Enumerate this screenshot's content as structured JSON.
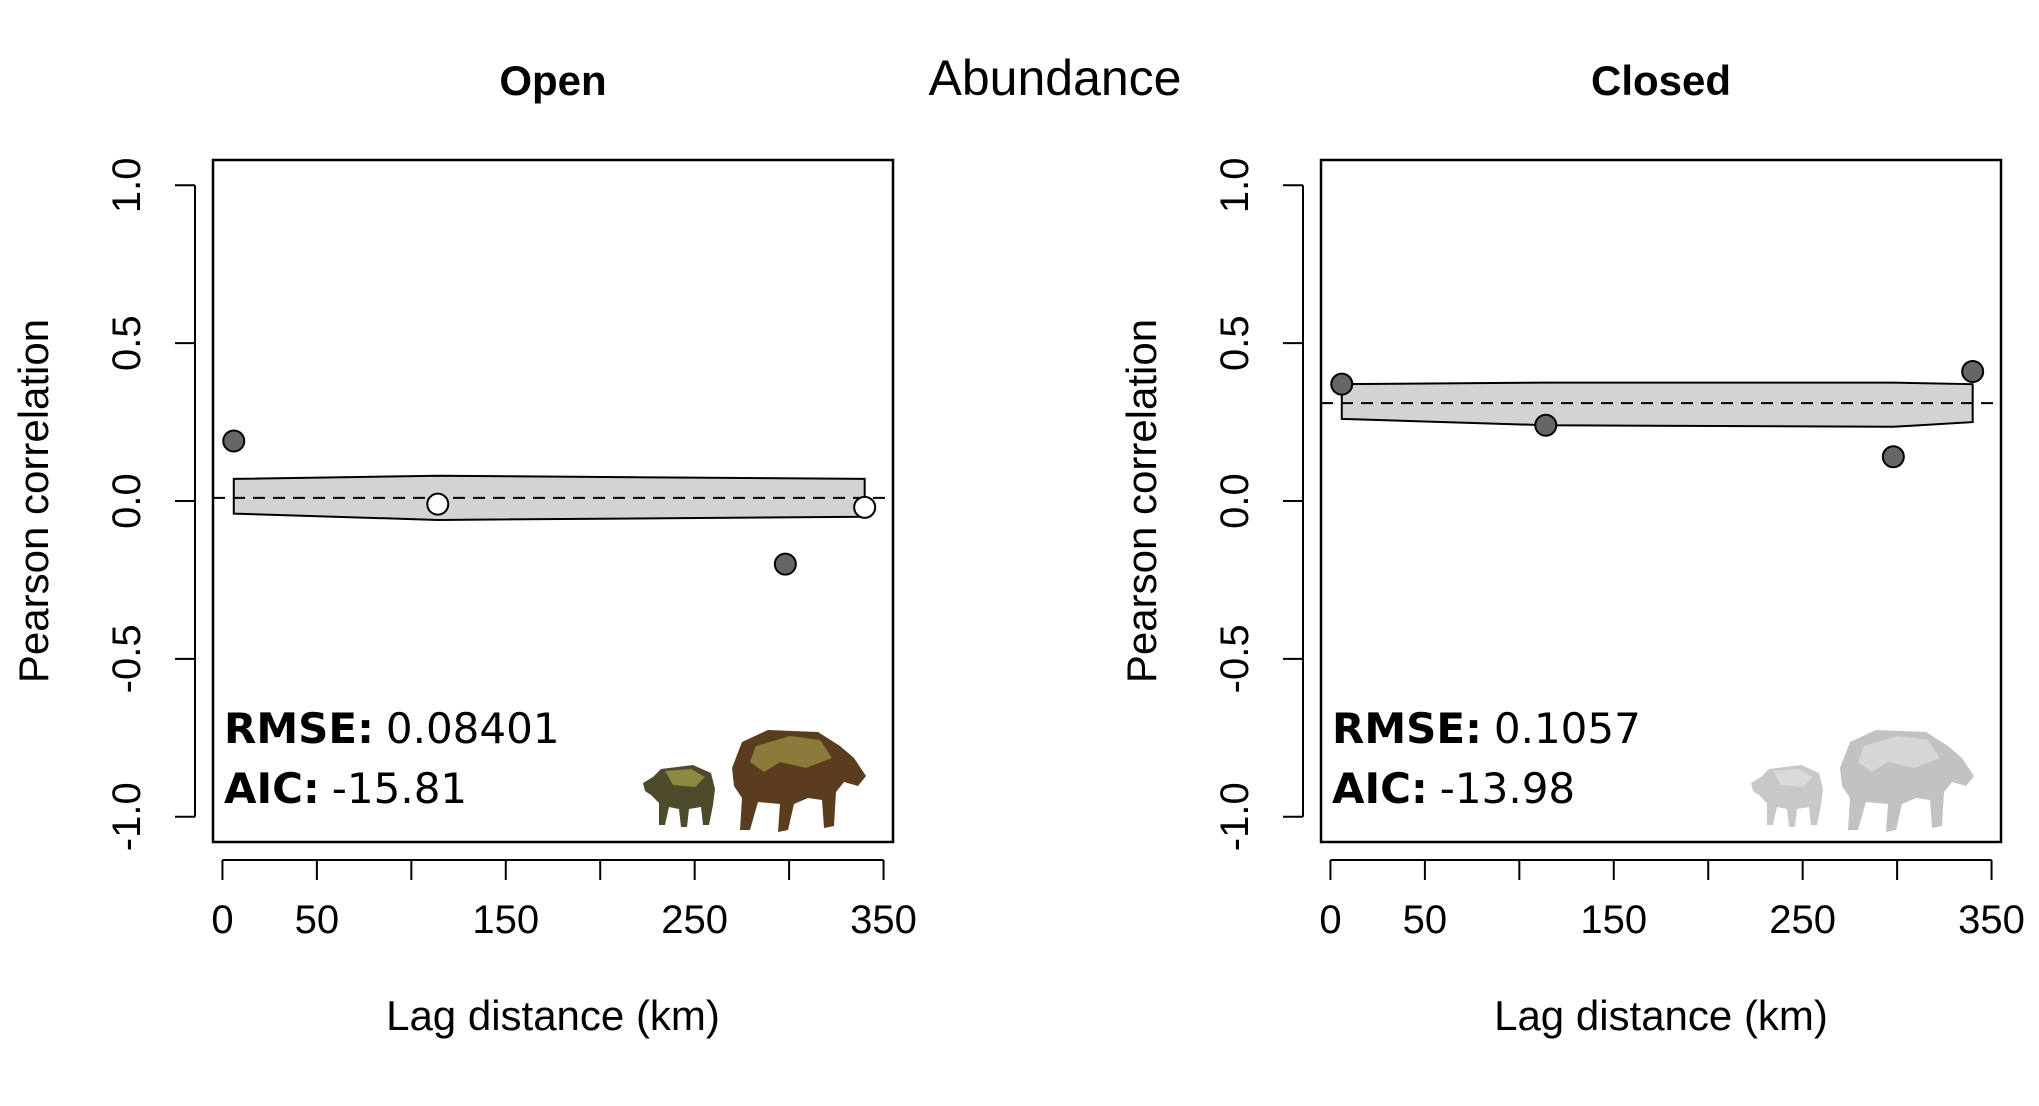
{
  "suptitle": "Abundance",
  "chart_data": [
    {
      "type": "scatter",
      "title": "Open",
      "xlabel": "Lag distance (km)",
      "ylabel": "Pearson correlation",
      "xlim": [
        -5,
        355
      ],
      "ylim": [
        -1.08,
        1.08
      ],
      "x_ticks": [
        0,
        50,
        100,
        150,
        200,
        250,
        300,
        350
      ],
      "x_tick_labels": [
        "0",
        "50",
        "",
        "150",
        "",
        "250",
        "",
        "350"
      ],
      "y_ticks": [
        -1.0,
        -0.5,
        0.0,
        0.5,
        1.0
      ],
      "y_tick_labels": [
        "-1.0",
        "-0.5",
        "0.0",
        "0.5",
        "1.0"
      ],
      "points": [
        {
          "x": 6,
          "y": 0.19,
          "significant": true
        },
        {
          "x": 114,
          "y": -0.01,
          "significant": false
        },
        {
          "x": 298,
          "y": -0.2,
          "significant": true
        },
        {
          "x": 340,
          "y": -0.02,
          "significant": false
        }
      ],
      "null_mean": 0.01,
      "envelope": {
        "x": [
          6,
          114,
          340
        ],
        "upper": [
          0.07,
          0.08,
          0.07
        ],
        "lower": [
          -0.04,
          -0.06,
          -0.05
        ]
      },
      "stats": {
        "rmse_label": "RMSE:",
        "rmse": "0.08401",
        "aic_label": "AIC:",
        "aic": "-15.81"
      },
      "silhouette_style": "color"
    },
    {
      "type": "scatter",
      "title": "Closed",
      "xlabel": "Lag distance (km)",
      "ylabel": "Pearson correlation",
      "xlim": [
        -5,
        355
      ],
      "ylim": [
        -1.08,
        1.08
      ],
      "x_ticks": [
        0,
        50,
        100,
        150,
        200,
        250,
        300,
        350
      ],
      "x_tick_labels": [
        "0",
        "50",
        "",
        "150",
        "",
        "250",
        "",
        "350"
      ],
      "y_ticks": [
        -1.0,
        -0.5,
        0.0,
        0.5,
        1.0
      ],
      "y_tick_labels": [
        "-1.0",
        "-0.5",
        "0.0",
        "0.5",
        "1.0"
      ],
      "points": [
        {
          "x": 6,
          "y": 0.37,
          "significant": true
        },
        {
          "x": 114,
          "y": 0.24,
          "significant": true
        },
        {
          "x": 298,
          "y": 0.14,
          "significant": true
        },
        {
          "x": 340,
          "y": 0.41,
          "significant": true
        }
      ],
      "null_mean": 0.31,
      "envelope": {
        "x": [
          6,
          114,
          298,
          340
        ],
        "upper": [
          0.37,
          0.375,
          0.375,
          0.37
        ],
        "lower": [
          0.26,
          0.24,
          0.235,
          0.25
        ]
      },
      "stats": {
        "rmse_label": "RMSE:",
        "rmse": "0.1057",
        "aic_label": "AIC:",
        "aic": "-13.98"
      },
      "silhouette_style": "gray"
    }
  ],
  "colors": {
    "significant_point": "#666666",
    "nonsignificant_point": "#ffffff",
    "envelope_fill": "#d3d3d3",
    "axis": "#000000",
    "silhouette_color_small": "#4e4a2c",
    "silhouette_color_small_patch": "#8b8a3e",
    "silhouette_color_large": "#5a3d1e",
    "silhouette_color_large_patch": "#8c7a3a",
    "silhouette_gray_small": "#c8c8c8",
    "silhouette_gray_large": "#c2c2c2"
  },
  "icons": [
    "peccary-silhouette-icon",
    "tapir-silhouette-icon"
  ]
}
